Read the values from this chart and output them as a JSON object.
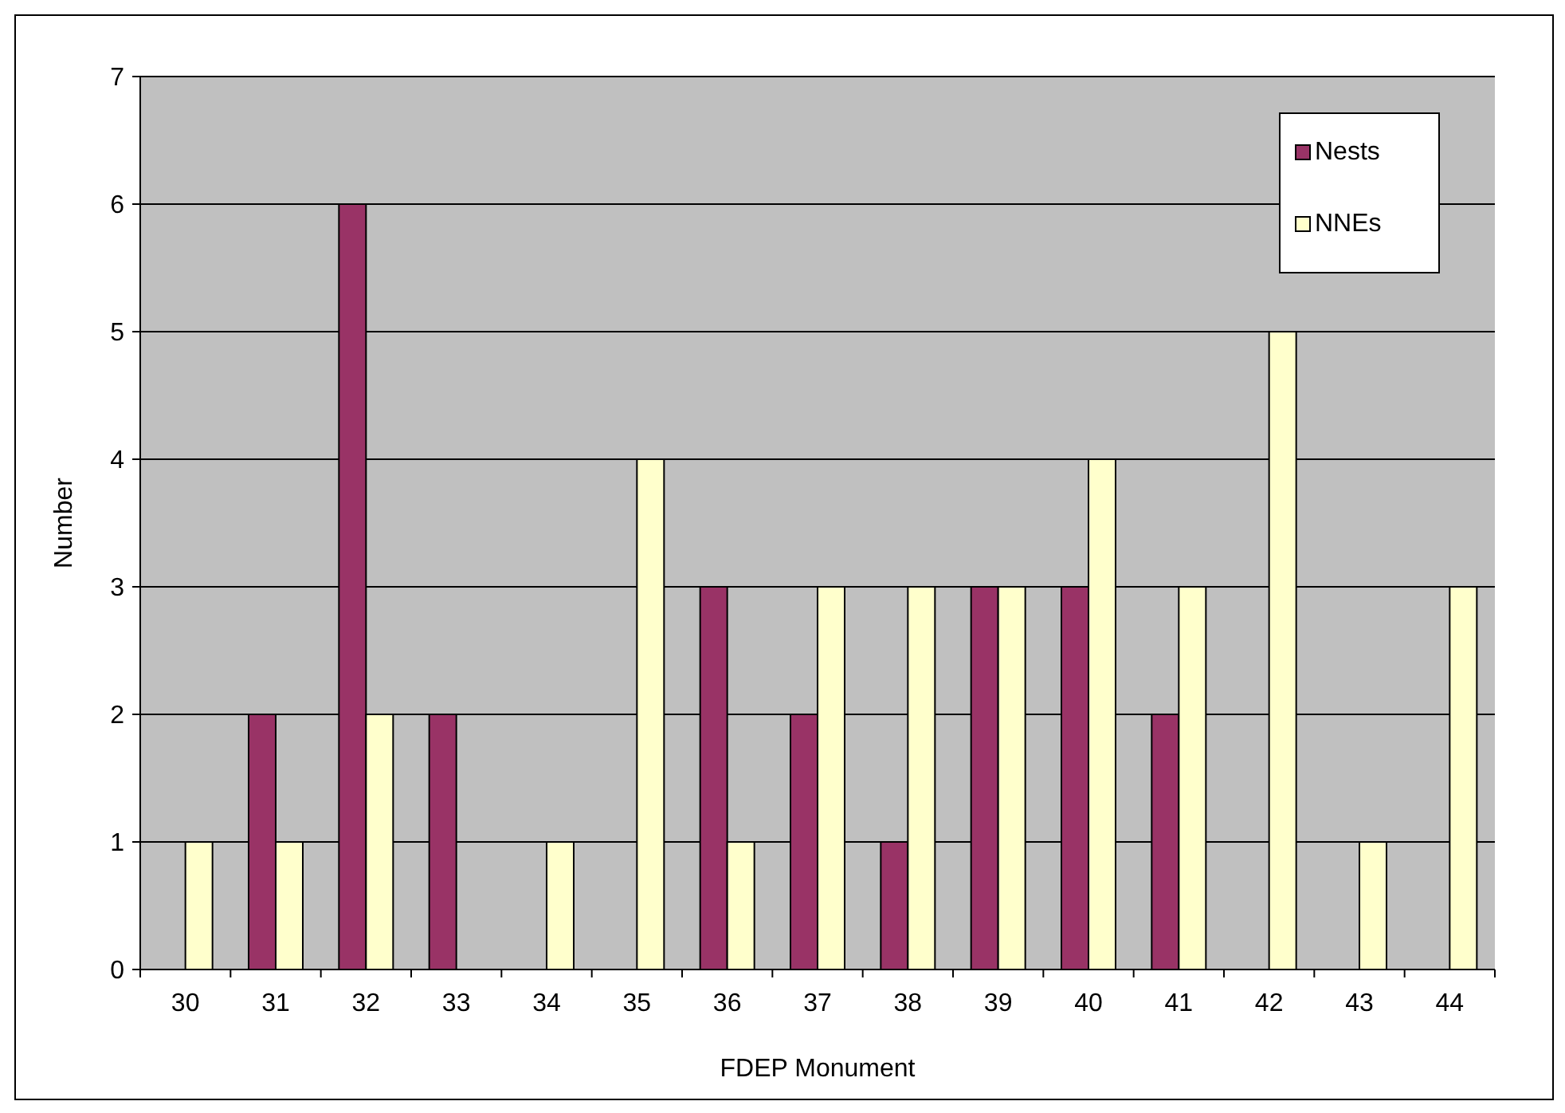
{
  "chart_data": {
    "type": "bar",
    "xlabel": "FDEP Monument",
    "ylabel": "Number",
    "categories": [
      "30",
      "31",
      "32",
      "33",
      "34",
      "35",
      "36",
      "37",
      "38",
      "39",
      "40",
      "41",
      "42",
      "43",
      "44"
    ],
    "series": [
      {
        "name": "Nests",
        "color": "#993366",
        "values": [
          0,
          2,
          6,
          2,
          0,
          0,
          3,
          2,
          1,
          3,
          3,
          2,
          0,
          0,
          0
        ]
      },
      {
        "name": "NNEs",
        "color": "#ffffcc",
        "values": [
          1,
          1,
          2,
          0,
          1,
          4,
          1,
          3,
          3,
          3,
          4,
          3,
          5,
          1,
          3
        ]
      }
    ],
    "ylim": [
      0,
      7
    ],
    "yticks": [
      0,
      1,
      2,
      3,
      4,
      5,
      6,
      7
    ],
    "grid": "y",
    "legend": "top right"
  }
}
